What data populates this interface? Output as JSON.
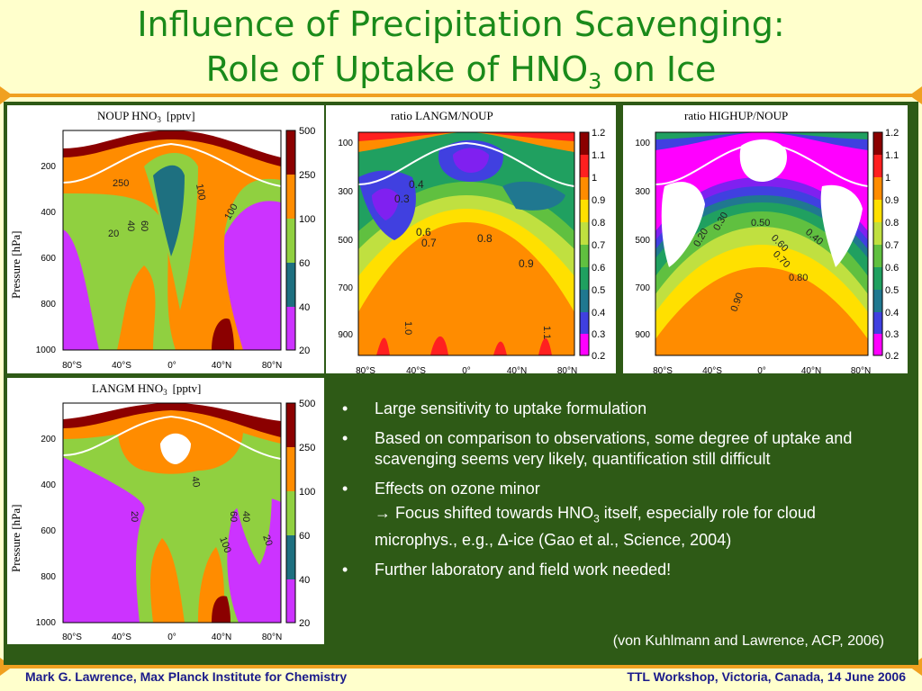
{
  "slide": {
    "title_line1": "Influence of Precipitation Scavenging:",
    "title_line2_pre": "Role of Uptake of HNO",
    "title_line2_sub": "3",
    "title_line2_post": " on Ice"
  },
  "panels": {
    "noup": {
      "title": "NOUP  HNO",
      "title_sub": "3",
      "unit": "[pptv]",
      "ylabel": "Pressure",
      "yunit": "[hPa]",
      "yticks": [
        "200",
        "400",
        "600",
        "800",
        "1000"
      ],
      "xticks": [
        "80°S",
        "40°S",
        "0°",
        "40°N",
        "80°N"
      ],
      "colorbar": [
        "500",
        "250",
        "100",
        "60",
        "40",
        "20"
      ],
      "contour_labels": [
        "100",
        "100",
        "60",
        "40",
        "20",
        "250"
      ]
    },
    "langm": {
      "title": "LANGM  HNO",
      "title_sub": "3",
      "unit": "[pptv]",
      "ylabel": "Pressure",
      "yunit": "[hPa]",
      "yticks": [
        "200",
        "400",
        "600",
        "800",
        "1000"
      ],
      "xticks": [
        "80°S",
        "40°S",
        "0°",
        "40°N",
        "80°N"
      ],
      "colorbar": [
        "500",
        "250",
        "100",
        "60",
        "40",
        "20"
      ],
      "contour_labels": [
        "40",
        "20",
        "60",
        "40",
        "100",
        "20"
      ]
    },
    "ratio_langm": {
      "title": "ratio  LANGM/NOUP",
      "yticks": [
        "100",
        "300",
        "500",
        "700",
        "900"
      ],
      "xticks": [
        "80°S",
        "40°S",
        "0°",
        "40°N",
        "80°N"
      ],
      "colorbar": [
        "1.2",
        "1.1",
        "1",
        "0.9",
        "0.8",
        "0.7",
        "0.6",
        "0.5",
        "0.4",
        "0.3",
        "0.2"
      ],
      "contour_labels": [
        "0.4",
        "0.3",
        "0.6",
        "0.7",
        "0.8",
        "0.9",
        "1.0",
        "1.1"
      ]
    },
    "ratio_highup": {
      "title": "ratio  HIGHUP/NOUP",
      "yticks": [
        "100",
        "300",
        "500",
        "700",
        "900"
      ],
      "xticks": [
        "80°S",
        "40°S",
        "0°",
        "40°N",
        "80°N"
      ],
      "colorbar": [
        "1.2",
        "1.1",
        "1",
        "0.9",
        "0.8",
        "0.7",
        "0.6",
        "0.5",
        "0.4",
        "0.3",
        "0.2"
      ],
      "contour_labels": [
        "0.50",
        "0.60",
        "0.40",
        "0.70",
        "0.80",
        "0.90",
        "0.30",
        "0.20"
      ]
    }
  },
  "bullets": [
    "Large sensitivity to uptake formulation",
    "Based on comparison to observations, some degree of uptake and scavenging seems very likely, quantification still difficult",
    "Effects on ozone minor"
  ],
  "sub_bullet": {
    "arrow": "→",
    "pre": " Focus shifted towards HNO",
    "sub": "3",
    "post": " itself, especially role for cloud microphys., e.g., ",
    "delta": "∆",
    "post2": "-ice (Gao et al., Science, 2004)"
  },
  "bullet_last": "Further laboratory and field work needed!",
  "bullet_symbol": "•",
  "citation": "(von Kuhlmann and Lawrence, ACP, 2006)",
  "footer": {
    "left": "Mark G. Lawrence, Max Planck Institute for Chemistry",
    "right": "TTL Workshop, Victoria, Canada, 14 June 2006"
  },
  "colors": {
    "title": "#1a8a1a",
    "background": "#ffffcc",
    "panel_bg": "#2e5a16",
    "rule": "#f0a020",
    "footer": "#1a1a8a",
    "colorbar6": [
      "#8b0000",
      "#ff8c00",
      "#90d040",
      "#1e7080",
      "#cc33ff",
      "#ffffff"
    ],
    "colorbar11": [
      "#8b0000",
      "#ff2020",
      "#ff8c00",
      "#ffe000",
      "#c0e040",
      "#60c040",
      "#20a060",
      "#207890",
      "#4040e0",
      "#8020f0",
      "#ff00ff"
    ]
  }
}
